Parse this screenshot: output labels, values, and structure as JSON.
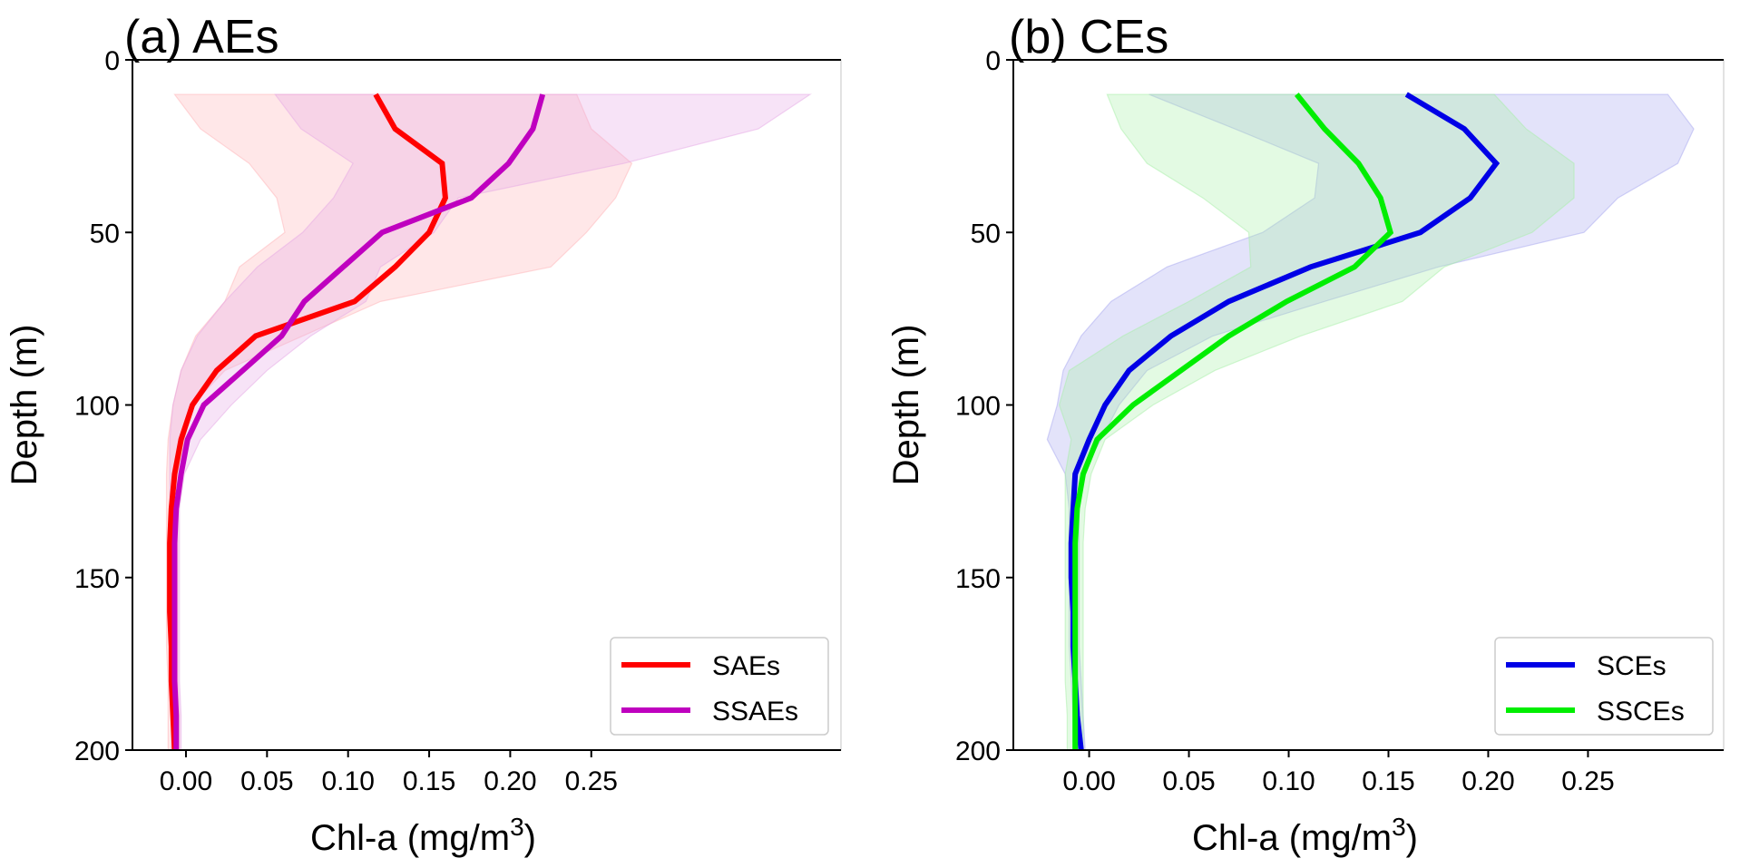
{
  "chart_data": [
    {
      "type": "line",
      "title": "(a) AEs",
      "xlabel": "Chl-a (mg/m",
      "xlabel_sup": "3",
      "xlabel_close": ")",
      "ylabel": "Depth (m)",
      "xlim": [
        -0.033,
        0.404
      ],
      "ylim": [
        200,
        0
      ],
      "y_inverted": true,
      "xticks": [
        0.0,
        0.05,
        0.1,
        0.15,
        0.2,
        0.25
      ],
      "xtick_labels": [
        "0.00",
        "0.05",
        "0.10",
        "0.15",
        "0.20",
        "0.25"
      ],
      "yticks": [
        0,
        50,
        100,
        150,
        200
      ],
      "ytick_labels": [
        "0",
        "50",
        "100",
        "150",
        "200"
      ],
      "grid": false,
      "legend_position": "bottom-right",
      "depth": [
        10,
        20,
        30,
        40,
        50,
        60,
        70,
        80,
        90,
        100,
        110,
        120,
        130,
        140,
        150,
        160,
        170,
        180,
        190,
        200
      ],
      "series": [
        {
          "name": "SAEs",
          "color": "#ff0000",
          "band_color": "#ffb3b8",
          "values": [
            0.117,
            0.129,
            0.158,
            0.16,
            0.15,
            0.129,
            0.104,
            0.043,
            0.019,
            0.004,
            -0.003,
            -0.007,
            -0.009,
            -0.01,
            -0.01,
            -0.01,
            -0.009,
            -0.009,
            -0.008,
            -0.007
          ],
          "band_lower": [
            -0.007,
            0.009,
            0.039,
            0.056,
            0.061,
            0.033,
            0.024,
            0.006,
            -0.003,
            -0.008,
            -0.011,
            -0.012,
            -0.012,
            -0.012,
            -0.012,
            -0.012,
            -0.012,
            -0.011,
            -0.011,
            -0.011
          ],
          "band_upper": [
            0.241,
            0.25,
            0.275,
            0.265,
            0.247,
            0.225,
            0.12,
            0.072,
            0.024,
            0.004,
            -0.001,
            -0.004,
            -0.005,
            -0.005,
            -0.005,
            -0.005,
            -0.005,
            -0.005,
            -0.004,
            -0.004
          ]
        },
        {
          "name": "SSAEs",
          "color": "#bf00bf",
          "band_color": "#e6a8e6",
          "values": [
            0.22,
            0.214,
            0.199,
            0.176,
            0.121,
            0.097,
            0.073,
            0.059,
            0.035,
            0.011,
            0.001,
            -0.003,
            -0.006,
            -0.007,
            -0.007,
            -0.007,
            -0.007,
            -0.007,
            -0.006,
            -0.006
          ],
          "band_lower": [
            0.055,
            0.071,
            0.103,
            0.091,
            0.072,
            0.044,
            0.024,
            0.007,
            -0.003,
            -0.008,
            -0.01,
            -0.01,
            -0.01,
            -0.01,
            -0.01,
            -0.01,
            -0.01,
            -0.01,
            -0.009,
            -0.009
          ],
          "band_upper": [
            0.385,
            0.353,
            0.27,
            0.168,
            0.153,
            0.12,
            0.111,
            0.077,
            0.05,
            0.028,
            0.009,
            -0.001,
            -0.004,
            -0.004,
            -0.004,
            -0.004,
            -0.004,
            -0.004,
            -0.003,
            -0.003
          ]
        }
      ]
    },
    {
      "type": "line",
      "title": "(b) CEs",
      "xlabel": "Chl-a (mg/m",
      "xlabel_sup": "3",
      "xlabel_close": ")",
      "ylabel": "Depth (m)",
      "xlim": [
        -0.038,
        0.318
      ],
      "ylim": [
        200,
        0
      ],
      "y_inverted": true,
      "xticks": [
        0.0,
        0.05,
        0.1,
        0.15,
        0.2,
        0.25
      ],
      "xtick_labels": [
        "0.00",
        "0.05",
        "0.10",
        "0.15",
        "0.20",
        "0.25"
      ],
      "yticks": [
        0,
        50,
        100,
        150,
        200
      ],
      "ytick_labels": [
        "0",
        "50",
        "100",
        "150",
        "200"
      ],
      "grid": false,
      "legend_position": "bottom-right",
      "depth": [
        10,
        20,
        30,
        40,
        50,
        60,
        70,
        80,
        90,
        100,
        110,
        120,
        130,
        140,
        150,
        160,
        170,
        180,
        190,
        200
      ],
      "series": [
        {
          "name": "SCEs",
          "color": "#0000e6",
          "band_color": "#a8a8f0",
          "values": [
            0.159,
            0.188,
            0.204,
            0.191,
            0.166,
            0.111,
            0.07,
            0.041,
            0.02,
            0.008,
            0.0,
            -0.007,
            -0.008,
            -0.009,
            -0.009,
            -0.008,
            -0.008,
            -0.007,
            -0.006,
            -0.004
          ],
          "band_lower": [
            0.03,
            0.073,
            0.115,
            0.113,
            0.087,
            0.039,
            0.011,
            -0.004,
            -0.013,
            -0.016,
            -0.021,
            -0.012,
            -0.01,
            -0.01,
            -0.01,
            -0.01,
            -0.01,
            -0.009,
            -0.008,
            -0.007
          ],
          "band_upper": [
            0.29,
            0.303,
            0.295,
            0.265,
            0.248,
            0.175,
            0.118,
            0.062,
            0.029,
            0.015,
            0.006,
            -0.004,
            -0.005,
            -0.005,
            -0.005,
            -0.005,
            -0.005,
            -0.004,
            -0.003,
            -0.002
          ]
        },
        {
          "name": "SSCEs",
          "color": "#00ee00",
          "band_color": "#a8f0a8",
          "values": [
            0.104,
            0.118,
            0.135,
            0.146,
            0.151,
            0.133,
            0.099,
            0.07,
            0.046,
            0.022,
            0.004,
            -0.003,
            -0.006,
            -0.007,
            -0.007,
            -0.007,
            -0.007,
            -0.007,
            -0.007,
            -0.007
          ],
          "band_lower": [
            0.009,
            0.016,
            0.029,
            0.057,
            0.08,
            0.081,
            0.05,
            0.017,
            -0.01,
            -0.015,
            -0.009,
            -0.012,
            -0.012,
            -0.012,
            -0.012,
            -0.012,
            -0.012,
            -0.012,
            -0.011,
            -0.011
          ],
          "band_upper": [
            0.203,
            0.219,
            0.243,
            0.243,
            0.222,
            0.178,
            0.157,
            0.106,
            0.063,
            0.032,
            0.008,
            0.001,
            -0.002,
            -0.003,
            -0.003,
            -0.003,
            -0.003,
            -0.003,
            -0.003,
            -0.003
          ]
        }
      ]
    }
  ]
}
